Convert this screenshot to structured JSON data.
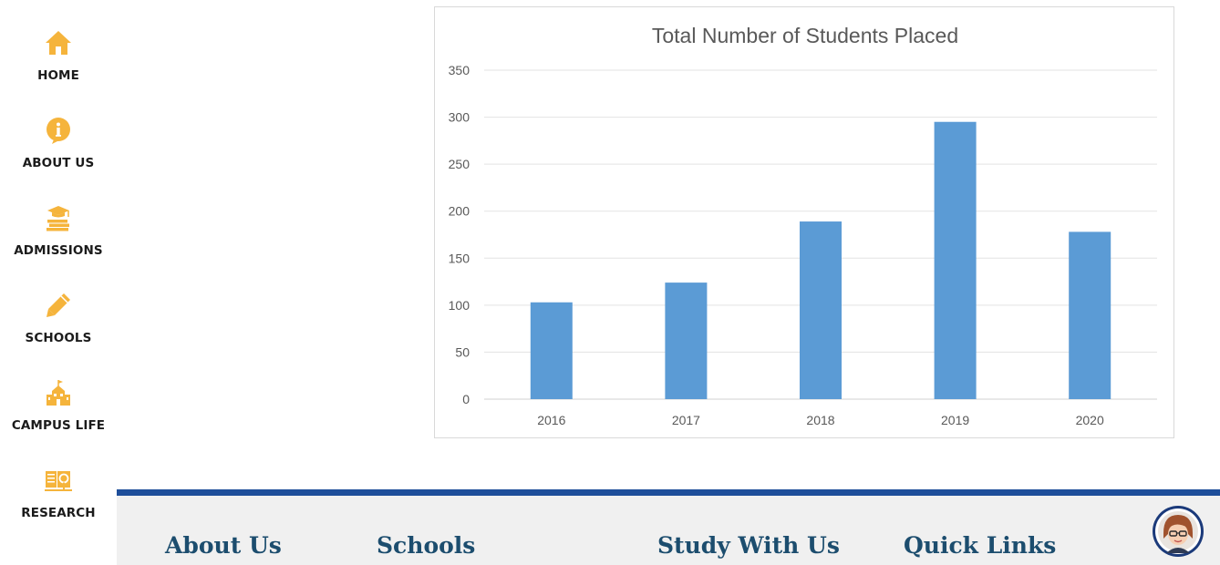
{
  "sidebar": {
    "items": [
      {
        "label": "HOME",
        "icon": "home-icon"
      },
      {
        "label": "ABOUT US",
        "icon": "info-icon"
      },
      {
        "label": "ADMISSIONS",
        "icon": "graduation-cap-books-icon"
      },
      {
        "label": "SCHOOLS",
        "icon": "pencil-icon"
      },
      {
        "label": "CAMPUS LIFE",
        "icon": "school-building-icon"
      },
      {
        "label": "RESEARCH",
        "icon": "research-book-icon"
      }
    ],
    "icon_color": "#f5b43c"
  },
  "chart_data": {
    "type": "bar",
    "title": "Total Number of Students Placed",
    "categories": [
      "2016",
      "2017",
      "2018",
      "2019",
      "2020"
    ],
    "values": [
      103,
      124,
      189,
      295,
      178
    ],
    "xlabel": "",
    "ylabel": "",
    "ylim": [
      0,
      350
    ],
    "yticks": [
      0,
      50,
      100,
      150,
      200,
      250,
      300,
      350
    ],
    "grid": true,
    "legend": "none",
    "bar_color": "#5b9bd5"
  },
  "footer": {
    "headings": [
      "About Us",
      "Schools",
      "Study With Us",
      "Quick Links"
    ],
    "accent_color": "#1e4e9a",
    "heading_color": "#1c4d6e"
  },
  "chat": {
    "icon": "chat-assistant-avatar-icon"
  }
}
